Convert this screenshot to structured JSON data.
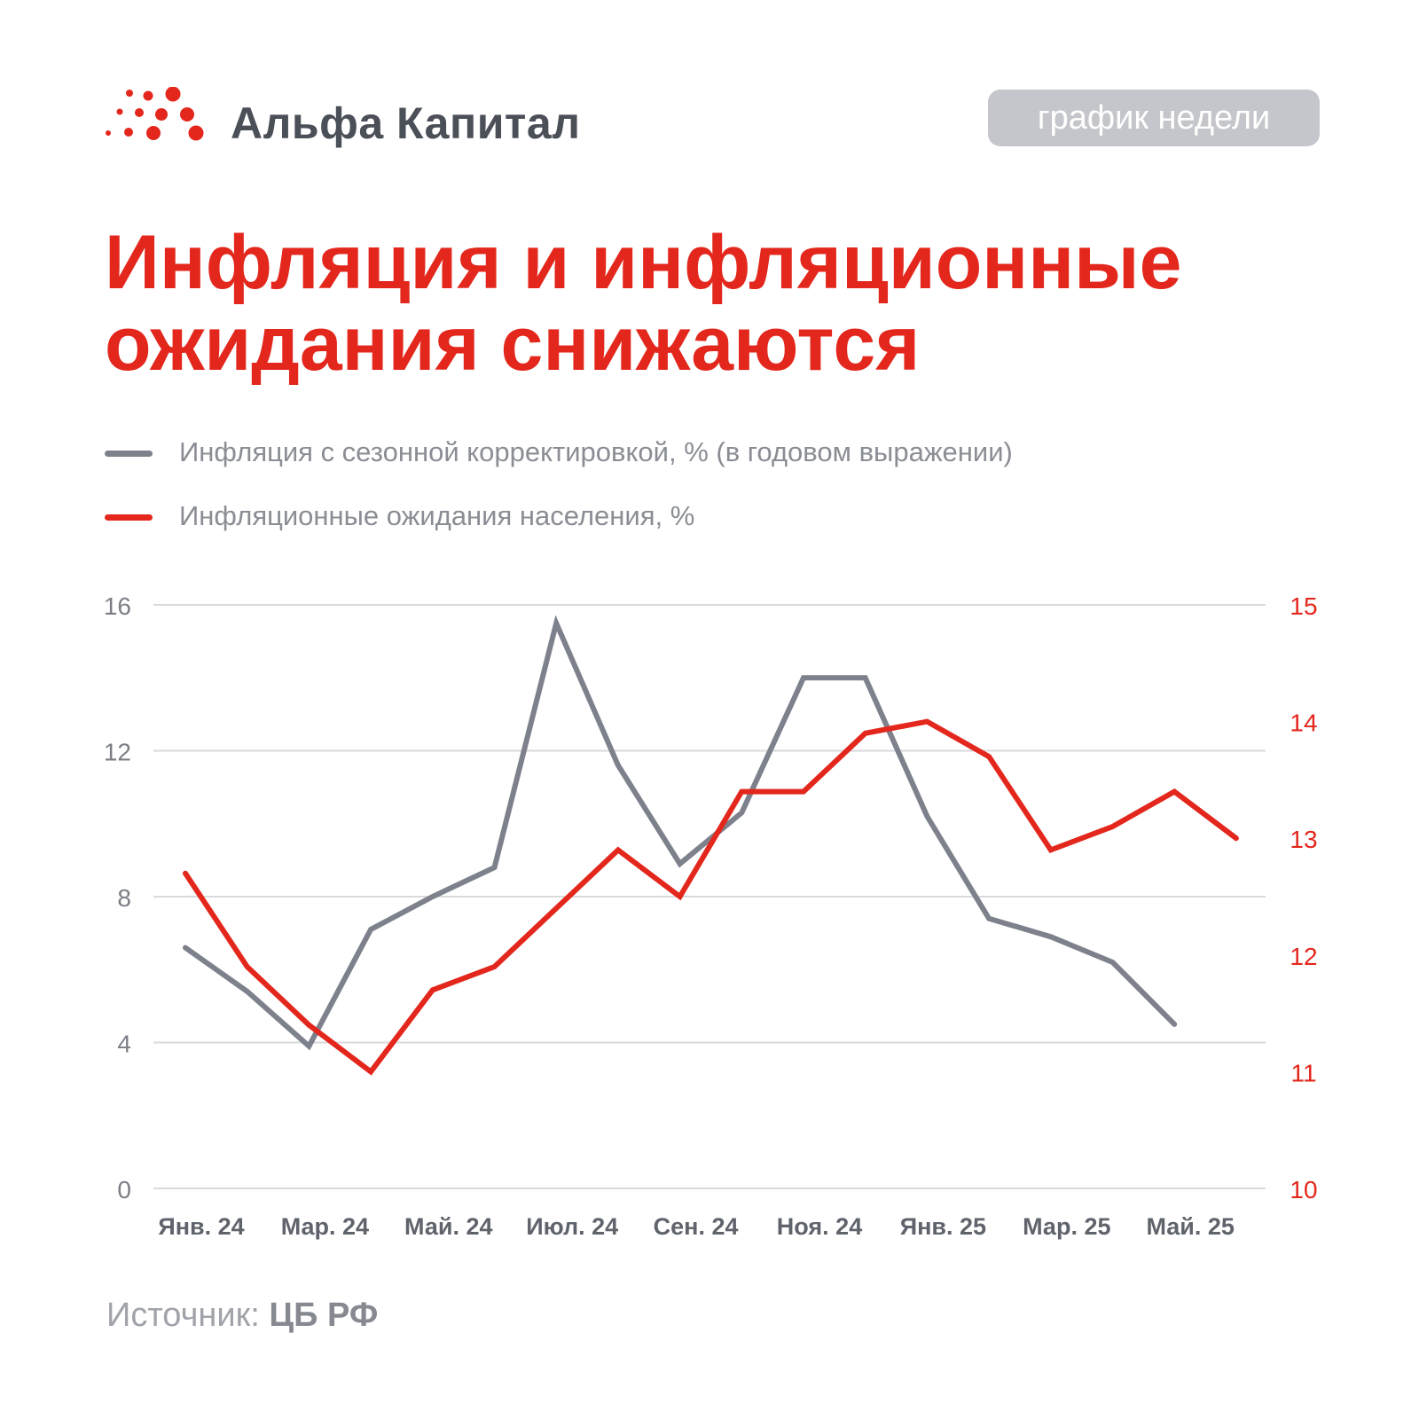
{
  "brand": {
    "name": "Альфа Капитал",
    "logo_icon": "dots-logo-icon"
  },
  "badge": {
    "label": "график недели"
  },
  "title": {
    "line1": "Инфляция и инфляционные",
    "line2": "ожидания снижаются"
  },
  "legend": [
    {
      "label": "Инфляция с сезонной корректировкой, % (в годовом выражении)",
      "color": "#7d818c"
    },
    {
      "label": "Инфляционные ожидания населения, %",
      "color": "#e3271c"
    }
  ],
  "source": {
    "prefix": "Источник: ",
    "value": "ЦБ РФ"
  },
  "colors": {
    "accent": "#e3271c",
    "gray_series": "#7d818c",
    "grid": "#d9dadd",
    "axis_text": "#7b7e85"
  },
  "chart_data": {
    "type": "line",
    "x": [
      "2024-01",
      "2024-02",
      "2024-03",
      "2024-04",
      "2024-05",
      "2024-06",
      "2024-07",
      "2024-08",
      "2024-09",
      "2024-10",
      "2024-11",
      "2024-12",
      "2025-01",
      "2025-02",
      "2025-03",
      "2025-04",
      "2025-05",
      "2025-06"
    ],
    "x_tick_labels": [
      "Янв. 24",
      "Мар. 24",
      "Май. 24",
      "Июл. 24",
      "Сен. 24",
      "Ноя. 24",
      "Янв. 25",
      "Мар. 25",
      "Май. 25"
    ],
    "series": [
      {
        "name": "Инфляция с сезонной корректировкой, % (в годовом выражении)",
        "axis": "left",
        "color": "#7d818c",
        "values": [
          6.6,
          5.4,
          3.9,
          7.1,
          8.0,
          8.8,
          15.5,
          11.6,
          8.9,
          10.3,
          14.0,
          14.0,
          10.2,
          7.4,
          6.9,
          6.2,
          4.5,
          null
        ]
      },
      {
        "name": "Инфляционные ожидания населения, %",
        "axis": "right",
        "color": "#e3271c",
        "values": [
          12.7,
          11.9,
          11.4,
          11.0,
          11.7,
          11.9,
          12.4,
          12.9,
          12.5,
          13.4,
          13.4,
          13.9,
          14.0,
          13.7,
          12.9,
          13.1,
          13.4,
          13.0
        ]
      }
    ],
    "y_left": {
      "min": 0,
      "max": 16,
      "ticks": [
        0,
        4,
        8,
        12,
        16
      ]
    },
    "y_right": {
      "min": 10,
      "max": 15,
      "ticks": [
        10,
        11,
        12,
        13,
        14,
        15
      ]
    },
    "grid": true,
    "legend_position": "top-left"
  }
}
